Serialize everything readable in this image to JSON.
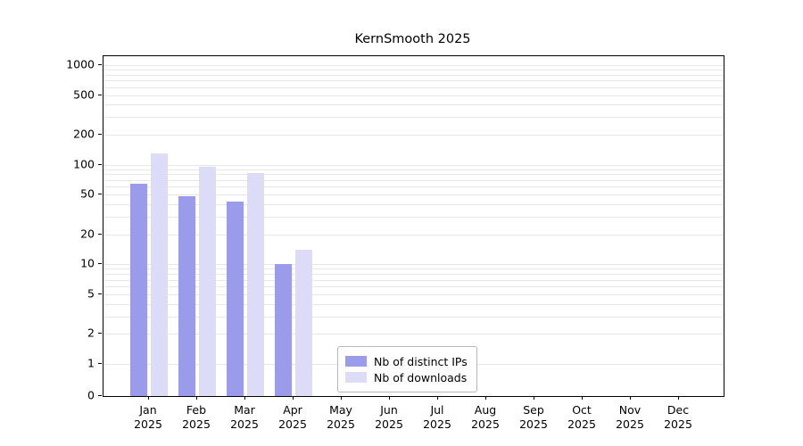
{
  "chart_data": {
    "type": "bar",
    "title": "KernSmooth 2025",
    "year_label": "2025",
    "categories": [
      "Jan",
      "Feb",
      "Mar",
      "Apr",
      "May",
      "Jun",
      "Jul",
      "Aug",
      "Sep",
      "Oct",
      "Nov",
      "Dec"
    ],
    "series": [
      {
        "name": "Nb of distinct IPs",
        "color": "#9b9bec",
        "values": [
          65,
          48,
          43,
          10,
          0,
          0,
          0,
          0,
          0,
          0,
          0,
          0
        ]
      },
      {
        "name": "Nb of downloads",
        "color": "#dcdcf8",
        "values": [
          130,
          95,
          82,
          14,
          0,
          0,
          0,
          0,
          0,
          0,
          0,
          0
        ]
      }
    ],
    "yscale": "log",
    "ylim": [
      0,
      1000
    ],
    "yticks": [
      0,
      1,
      2,
      5,
      10,
      20,
      50,
      100,
      200,
      500,
      1000
    ],
    "grid": "horizontal-minor-log",
    "gridcolor": "#e7e7e7",
    "legend_position": "bottom-center",
    "xlabel": "",
    "ylabel": ""
  }
}
